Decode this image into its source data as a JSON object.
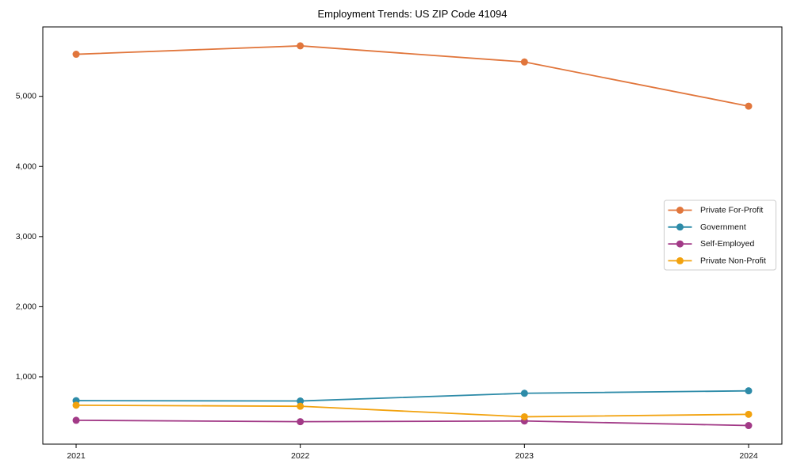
{
  "title": "Employment Trends: US ZIP Code 41094",
  "chart_data": {
    "type": "line",
    "title": "Employment Trends: US ZIP Code 41094",
    "xlabel": "",
    "ylabel": "",
    "categories": [
      "2021",
      "2022",
      "2023",
      "2024"
    ],
    "series": [
      {
        "name": "Private For-Profit",
        "color": "#E1763C",
        "values": [
          5600,
          5720,
          5490,
          4860
        ]
      },
      {
        "name": "Government",
        "color": "#2D8BA8",
        "values": [
          660,
          655,
          765,
          800
        ]
      },
      {
        "name": "Self-Employed",
        "color": "#A23A87",
        "values": [
          380,
          360,
          370,
          305
        ]
      },
      {
        "name": "Private Non-Profit",
        "color": "#F2A20E",
        "values": [
          595,
          580,
          430,
          465
        ]
      }
    ],
    "ylim": [
      40,
      5990
    ],
    "yticks": [
      1000,
      2000,
      3000,
      4000,
      5000
    ],
    "ytick_labels": [
      "1,000",
      "2,000",
      "3,000",
      "4,000",
      "5,000"
    ],
    "grid": false,
    "legend_position": "right",
    "frame": "box",
    "marker": "circle"
  }
}
